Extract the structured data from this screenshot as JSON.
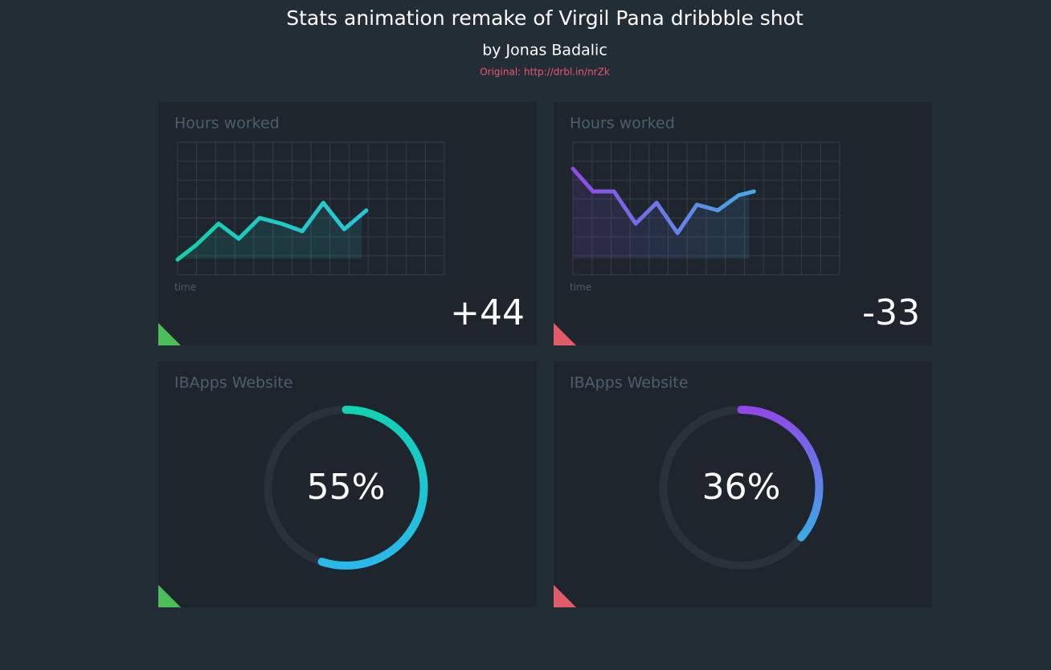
{
  "header": {
    "title": "Stats animation remake of Virgil Pana dribbble shot",
    "subtitle": "by Jonas Badalic",
    "link": "Original: http://drbl.in/nrZk"
  },
  "chart_data": [
    {
      "type": "line",
      "title": "Hours worked",
      "x_label": "time",
      "x": [
        0,
        0.94,
        2,
        2.98,
        4,
        5.06,
        6.08,
        7.1,
        8.12,
        9.2
      ],
      "series": [
        {
          "colors": [
            "#14cfae",
            "#2ac6d8"
          ],
          "values": [
            0.8,
            1.6,
            2.7,
            1.9,
            3.0,
            2.7,
            2.3,
            3.8,
            2.4,
            3.4
          ]
        }
      ],
      "xlim": [
        0,
        13
      ],
      "ylim": [
        0,
        7
      ],
      "summary": {
        "value": 44,
        "label": "+44"
      }
    },
    {
      "type": "line",
      "title": "Hours worked",
      "x_label": "time",
      "x": [
        0,
        0.98,
        2,
        3.06,
        4.08,
        5.1,
        6.04,
        7.06,
        8.08,
        8.82
      ],
      "series": [
        {
          "colors": [
            "#9149e6",
            "#3fb0e6"
          ],
          "values": [
            5.6,
            4.4,
            4.4,
            2.7,
            3.8,
            2.2,
            3.7,
            3.4,
            4.2,
            4.4
          ]
        }
      ],
      "xlim": [
        0,
        13
      ],
      "ylim": [
        0,
        7
      ],
      "summary": {
        "value": -33,
        "label": "-33"
      }
    },
    {
      "type": "donut",
      "title": "IBApps Website",
      "value": 55,
      "value_label": "55%",
      "colors": [
        "#10d3b4",
        "#2ab8ea"
      ]
    },
    {
      "type": "donut",
      "title": "IBApps Website",
      "value": 36,
      "value_label": "36%",
      "colors": [
        "#9148e8",
        "#28c0e6"
      ]
    }
  ]
}
